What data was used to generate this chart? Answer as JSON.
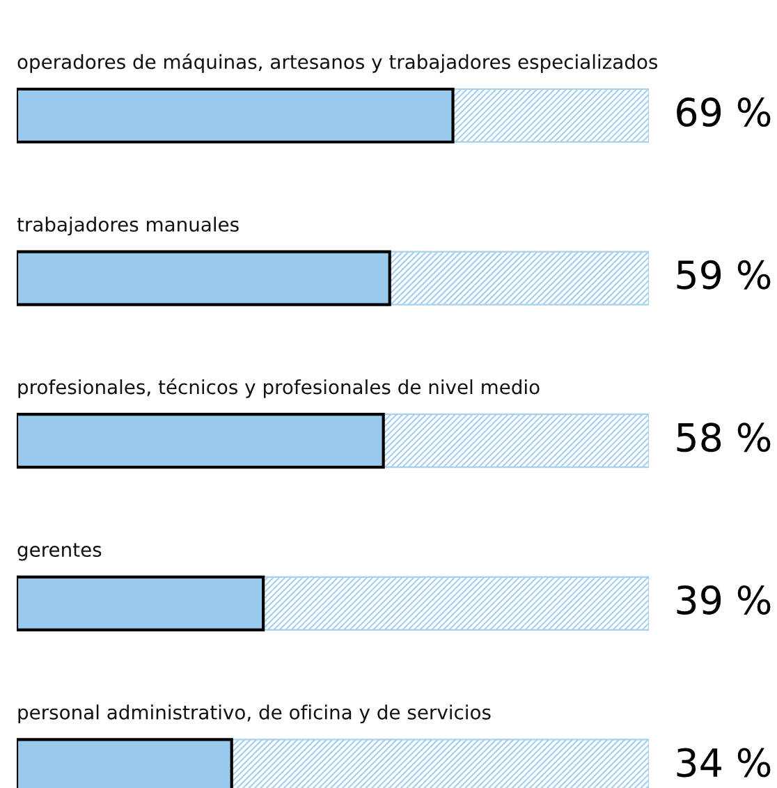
{
  "chart_data": {
    "type": "bar",
    "orientation": "horizontal",
    "categories": [
      "operadores de máquinas, artesanos y trabajadores especializados",
      "trabajadores manuales",
      "profesionales, técnicos y profesionales de nivel medio",
      "gerentes",
      "personal administrativo, de oficina y de servicios"
    ],
    "values": [
      69,
      59,
      58,
      39,
      34
    ],
    "value_labels": [
      "69 %",
      "59 %",
      "58 %",
      "39 %",
      "34 %"
    ],
    "color": "#99c9ec",
    "xlim": [
      0,
      100
    ],
    "tick_labels": false
  }
}
